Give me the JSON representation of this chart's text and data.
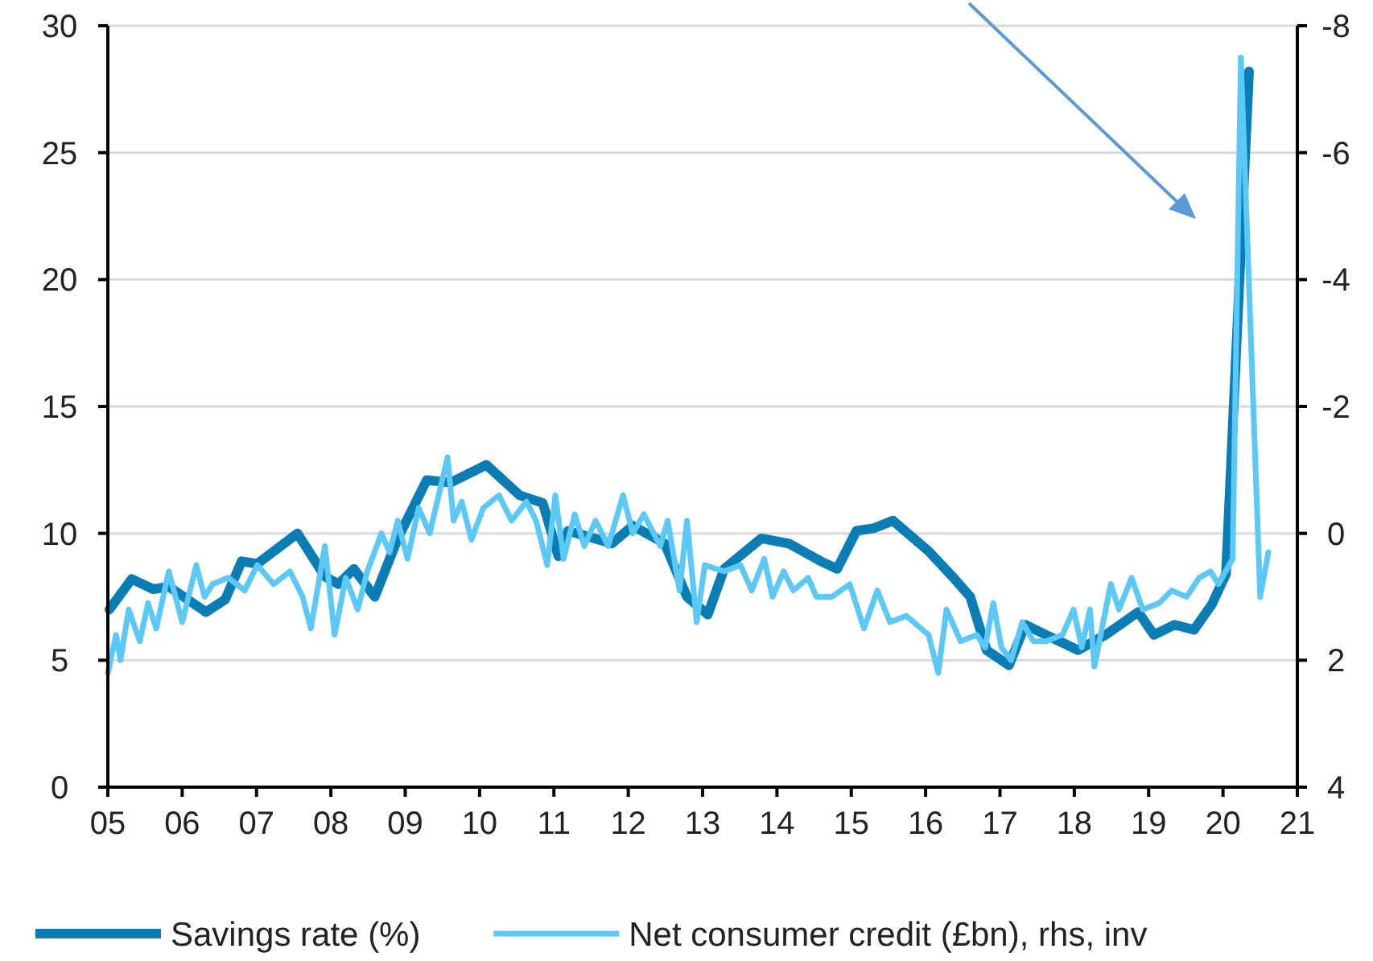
{
  "chart_data": {
    "type": "line",
    "xlim": [
      2005,
      2021
    ],
    "xticks": [
      {
        "value": 2005,
        "label": "05"
      },
      {
        "value": 2006,
        "label": "06"
      },
      {
        "value": 2007,
        "label": "07"
      },
      {
        "value": 2008,
        "label": "08"
      },
      {
        "value": 2009,
        "label": "09"
      },
      {
        "value": 2010,
        "label": "10"
      },
      {
        "value": 2011,
        "label": "11"
      },
      {
        "value": 2012,
        "label": "12"
      },
      {
        "value": 2013,
        "label": "13"
      },
      {
        "value": 2014,
        "label": "14"
      },
      {
        "value": 2015,
        "label": "15"
      },
      {
        "value": 2016,
        "label": "16"
      },
      {
        "value": 2017,
        "label": "17"
      },
      {
        "value": 2018,
        "label": "18"
      },
      {
        "value": 2019,
        "label": "19"
      },
      {
        "value": 2020,
        "label": "20"
      },
      {
        "value": 2021,
        "label": "21"
      }
    ],
    "ylim": [
      0,
      30
    ],
    "yticks": [
      0,
      5,
      10,
      15,
      20,
      25,
      30
    ],
    "y2lim": [
      4,
      -8
    ],
    "y2ticks": [
      4,
      2,
      0,
      -2,
      -4,
      -6,
      -8
    ],
    "grid": "y",
    "legend": "bottom",
    "series": [
      {
        "name": "Savings rate (%)",
        "color": "#0a7db5",
        "x": [
          2005.02,
          2005.32,
          2005.61,
          2005.82,
          2006.32,
          2006.58,
          2006.8,
          2007.01,
          2007.55,
          2007.92,
          2008.1,
          2008.31,
          2008.59,
          2008.9,
          2009.29,
          2009.61,
          2010.09,
          2010.54,
          2010.85,
          2011.06,
          2011.19,
          2011.78,
          2012.06,
          2012.49,
          2012.79,
          2013.07,
          2013.29,
          2013.79,
          2014.16,
          2014.59,
          2014.81,
          2015.07,
          2015.3,
          2015.56,
          2016.04,
          2016.39,
          2016.6,
          2016.82,
          2017.12,
          2017.34,
          2017.62,
          2018.05,
          2018.42,
          2018.86,
          2019.07,
          2019.35,
          2019.61,
          2019.85,
          2020.04,
          2020.35
        ],
        "values": [
          7.0,
          8.2,
          7.8,
          7.9,
          6.9,
          7.4,
          8.9,
          8.8,
          10.0,
          8.3,
          8.0,
          8.6,
          7.5,
          9.8,
          12.1,
          12.0,
          12.7,
          11.5,
          11.2,
          9.1,
          10.1,
          9.6,
          10.3,
          9.6,
          7.5,
          6.8,
          8.6,
          9.8,
          9.6,
          8.9,
          8.6,
          10.1,
          10.2,
          10.5,
          9.3,
          8.2,
          7.5,
          5.4,
          4.8,
          6.4,
          6.0,
          5.4,
          6.0,
          6.9,
          6.0,
          6.4,
          6.2,
          7.2,
          8.4,
          28.2
        ]
      },
      {
        "name": "Net consumer credit (£bn), rhs, inv",
        "color": "#5bc8f5",
        "axis": "y2",
        "x": [
          2005.0,
          2005.11,
          2005.17,
          2005.28,
          2005.43,
          2005.54,
          2005.65,
          2005.82,
          2006.0,
          2006.19,
          2006.3,
          2006.41,
          2006.62,
          2006.84,
          2007.01,
          2007.23,
          2007.45,
          2007.62,
          2007.73,
          2007.92,
          2008.05,
          2008.2,
          2008.36,
          2008.49,
          2008.68,
          2008.79,
          2008.9,
          2009.03,
          2009.18,
          2009.33,
          2009.57,
          2009.65,
          2009.76,
          2009.89,
          2010.05,
          2010.26,
          2010.43,
          2010.63,
          2010.76,
          2010.91,
          2011.02,
          2011.13,
          2011.28,
          2011.41,
          2011.56,
          2011.73,
          2011.93,
          2012.06,
          2012.21,
          2012.43,
          2012.53,
          2012.69,
          2012.79,
          2012.92,
          2013.03,
          2013.29,
          2013.51,
          2013.66,
          2013.83,
          2013.94,
          2014.09,
          2014.22,
          2014.42,
          2014.53,
          2014.74,
          2014.98,
          2015.17,
          2015.35,
          2015.52,
          2015.74,
          2016.04,
          2016.17,
          2016.28,
          2016.47,
          2016.69,
          2016.8,
          2016.91,
          2017.02,
          2017.15,
          2017.3,
          2017.45,
          2017.62,
          2017.84,
          2017.99,
          2018.1,
          2018.21,
          2018.27,
          2018.49,
          2018.6,
          2018.77,
          2018.92,
          2019.14,
          2019.31,
          2019.51,
          2019.68,
          2019.83,
          2019.94,
          2020.13,
          2020.24,
          2020.5,
          2020.61
        ],
        "values": [
          2.2,
          1.6,
          2.0,
          1.2,
          1.7,
          1.1,
          1.5,
          0.6,
          1.4,
          0.5,
          1.0,
          0.8,
          0.7,
          0.9,
          0.5,
          0.8,
          0.6,
          1.0,
          1.5,
          0.2,
          1.6,
          0.7,
          1.2,
          0.6,
          0.0,
          0.3,
          -0.2,
          0.4,
          -0.4,
          0.0,
          -1.2,
          -0.2,
          -0.5,
          0.1,
          -0.4,
          -0.6,
          -0.2,
          -0.5,
          -0.2,
          0.5,
          -0.6,
          0.4,
          -0.3,
          0.2,
          -0.2,
          0.2,
          -0.6,
          0.0,
          -0.3,
          0.2,
          -0.2,
          0.9,
          -0.2,
          1.4,
          0.5,
          0.6,
          0.5,
          0.9,
          0.4,
          1.0,
          0.6,
          0.9,
          0.7,
          1.0,
          1.0,
          0.8,
          1.5,
          0.9,
          1.4,
          1.3,
          1.6,
          2.2,
          1.2,
          1.7,
          1.6,
          1.8,
          1.1,
          1.8,
          2.0,
          1.4,
          1.7,
          1.7,
          1.6,
          1.2,
          1.8,
          1.2,
          2.1,
          0.8,
          1.2,
          0.7,
          1.2,
          1.1,
          0.9,
          1.0,
          0.7,
          0.6,
          0.8,
          0.4,
          -7.5,
          1.0,
          0.3
        ]
      }
    ]
  }
}
